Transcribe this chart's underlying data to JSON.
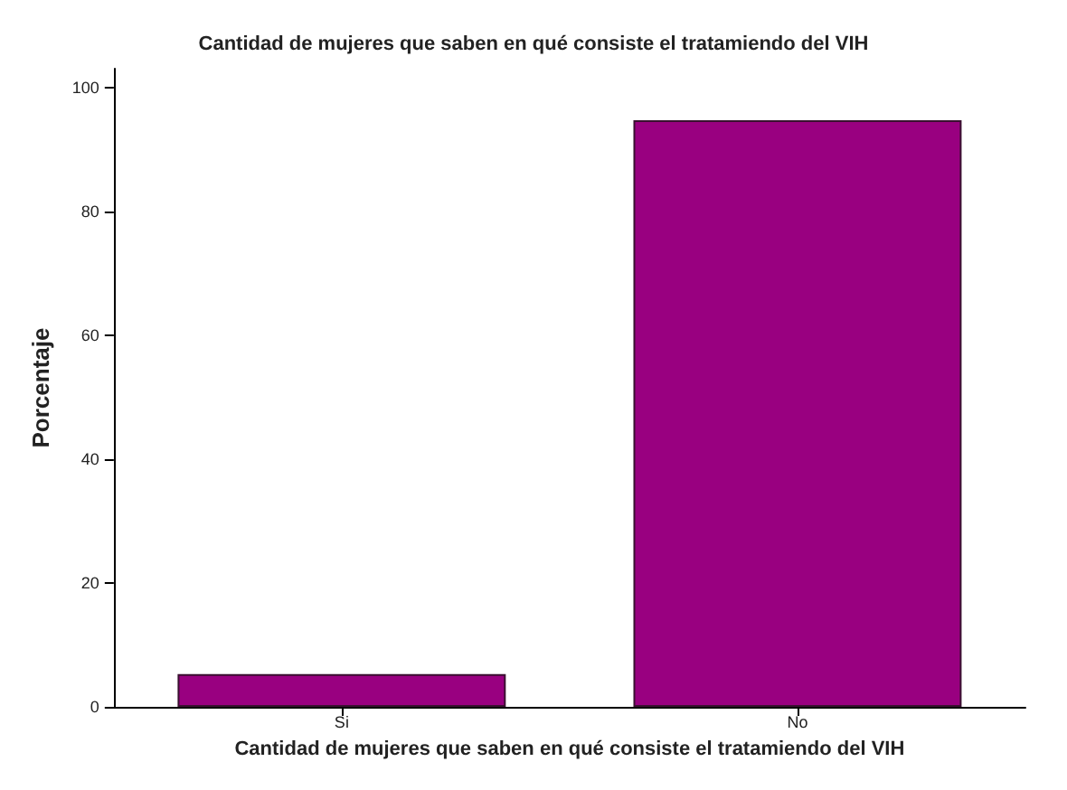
{
  "chart_data": {
    "type": "bar",
    "title": "Cantidad de mujeres que saben en qué consiste el tratamiendo del VIH",
    "xlabel": "Cantidad de mujeres que saben en qué consiste el tratamiendo del VIH",
    "ylabel": "Porcentaje",
    "categories": [
      "Si",
      "No"
    ],
    "values": [
      5.3,
      94.7
    ],
    "color": "#990080",
    "ylim": [
      0,
      103
    ],
    "yticks": [
      0,
      20,
      40,
      60,
      80,
      100
    ],
    "grid": false
  }
}
